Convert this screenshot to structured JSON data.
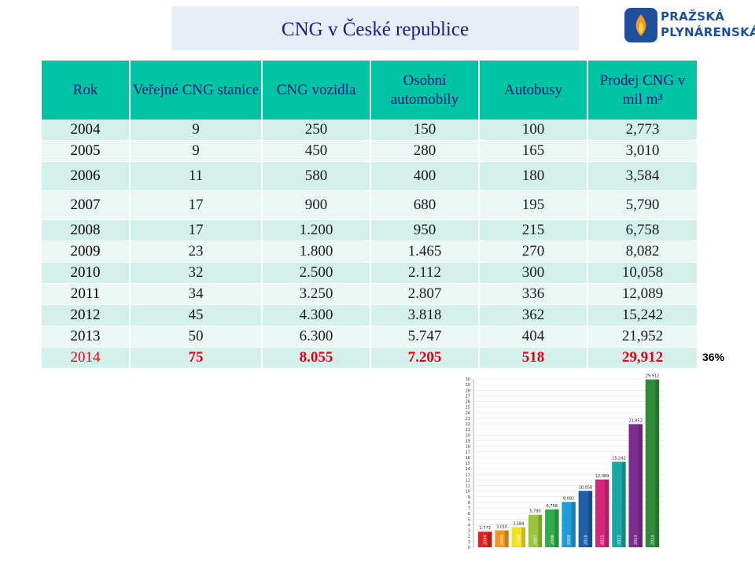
{
  "title": "CNG v České republice",
  "logo": {
    "line1": "PRAŽSKÁ",
    "line2": "PLYNÁRENSKÁ"
  },
  "table": {
    "headers": [
      "Rok",
      "Veřejné CNG stanice",
      "CNG vozidla",
      "Osobní automobily",
      "Autobusy",
      "Prodej CNG v mil m³"
    ],
    "rows": [
      [
        "2004",
        "9",
        "250",
        "150",
        "100",
        "2,773"
      ],
      [
        "2005",
        "9",
        "450",
        "280",
        "165",
        "3,010"
      ],
      [
        "2006",
        "11",
        "580",
        "400",
        "180",
        "3,584"
      ],
      [
        "2007",
        "17",
        "900",
        "680",
        "195",
        "5,790"
      ],
      [
        "2008",
        "17",
        "1.200",
        "950",
        "215",
        "6,758"
      ],
      [
        "2009",
        "23",
        "1.800",
        "1.465",
        "270",
        "8,082"
      ],
      [
        "2010",
        "32",
        "2.500",
        "2.112",
        "300",
        "10,058"
      ],
      [
        "2011",
        "34",
        "3.250",
        "2.807",
        "336",
        "12,089"
      ],
      [
        "2012",
        "45",
        "4.300",
        "3.818",
        "362",
        "15,242"
      ],
      [
        "2013",
        "50",
        "6.300",
        "5.747",
        "404",
        "21,952"
      ],
      [
        "2014",
        "75",
        "8.055",
        "7.205",
        "518",
        "29,912"
      ]
    ]
  },
  "growth_note": "36%",
  "chart_data": {
    "type": "bar",
    "categories": [
      "2004",
      "2005",
      "2006",
      "2007",
      "2008",
      "2009",
      "2010",
      "2011",
      "2012",
      "2013",
      "2014"
    ],
    "values": [
      2.773,
      3.01,
      3.584,
      5.79,
      6.758,
      8.082,
      10.058,
      12.089,
      15.242,
      21.952,
      29.912
    ],
    "data_labels": [
      "2,773",
      "3,010",
      "3,584",
      "5,790",
      "6,758",
      "8,082",
      "10,058",
      "12,089",
      "15,242",
      "21,952",
      "29,912"
    ],
    "colors": [
      "#e3201b",
      "#f29a1d",
      "#f4e11f",
      "#9bc53d",
      "#2cab4a",
      "#1f9bd7",
      "#1f5fa8",
      "#d6257c",
      "#19a7a2",
      "#7b2c8f",
      "#2e8b3a"
    ],
    "yticks": [
      "0",
      "1",
      "2",
      "3",
      "4",
      "5",
      "6",
      "7",
      "8",
      "9",
      "10",
      "11",
      "12",
      "13",
      "14",
      "15",
      "16",
      "17",
      "18",
      "19",
      "20",
      "21",
      "22",
      "23",
      "24",
      "25",
      "26",
      "27",
      "28",
      "29",
      "30"
    ],
    "ylim": [
      0,
      30
    ],
    "grid": true
  }
}
